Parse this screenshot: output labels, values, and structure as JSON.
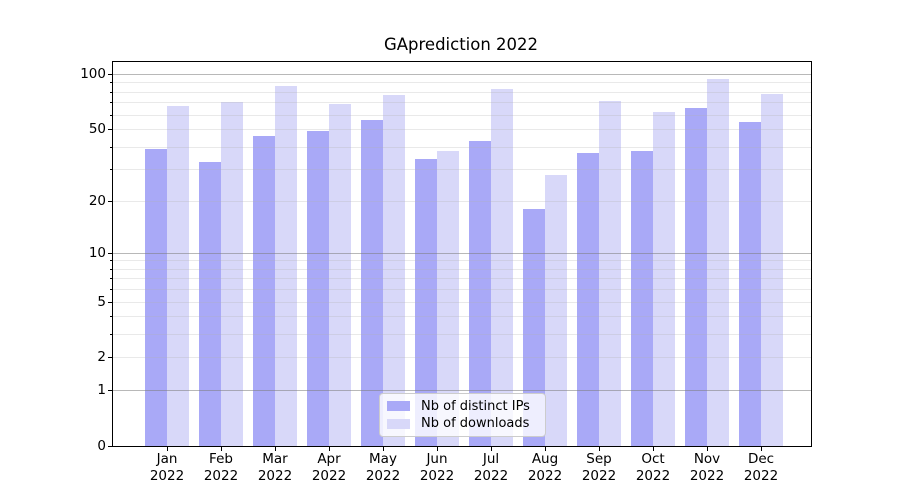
{
  "chart_data": {
    "type": "bar",
    "title": "GAprediction 2022",
    "x_year_label": "2022",
    "categories": [
      "Jan",
      "Feb",
      "Mar",
      "Apr",
      "May",
      "Jun",
      "Jul",
      "Aug",
      "Sep",
      "Oct",
      "Nov",
      "Dec"
    ],
    "series": [
      {
        "name": "Nb of distinct IPs",
        "color": "#a9a9f7",
        "values": [
          39,
          33,
          46,
          49,
          56,
          34,
          43,
          18,
          37,
          38,
          65,
          55
        ]
      },
      {
        "name": "Nb of downloads",
        "color": "#d8d8f9",
        "values": [
          67,
          70,
          86,
          69,
          77,
          38,
          83,
          28,
          71,
          62,
          94,
          78
        ]
      }
    ],
    "yscale": "log1p",
    "ylim": [
      0,
      116
    ],
    "ytick_labels": [
      "100",
      "50",
      "20",
      "10",
      "5",
      "2",
      "1",
      "0"
    ],
    "ytick_values": [
      100,
      50,
      20,
      10,
      5,
      2,
      1,
      0
    ],
    "ytick_minor_values": [
      3,
      4,
      6,
      7,
      8,
      9,
      30,
      40,
      60,
      70,
      80,
      90
    ],
    "grid_major_values": [
      1,
      10,
      100
    ],
    "grid_minor_values": [
      2,
      3,
      4,
      5,
      6,
      7,
      8,
      9,
      20,
      30,
      40,
      50,
      60,
      70,
      80,
      90
    ],
    "grid": "both",
    "legend_position": "lower center"
  }
}
